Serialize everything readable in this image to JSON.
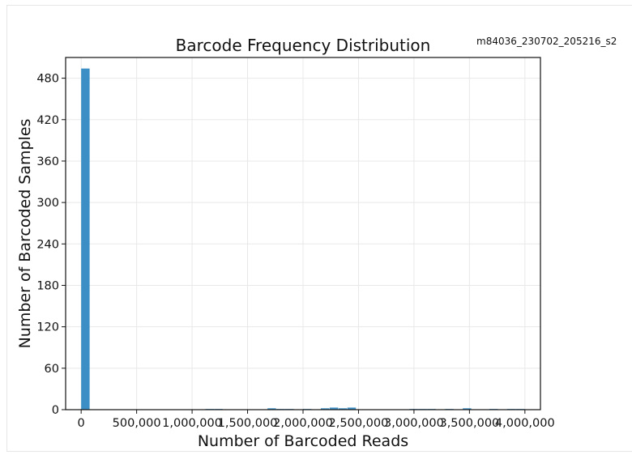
{
  "sample_id": "m84036_230702_205216_s2",
  "chart_data": {
    "type": "bar",
    "title": "Barcode Frequency Distribution",
    "xlabel": "Number of Barcoded Reads",
    "ylabel": "Number of Barcoded Samples",
    "xlim": [
      -140000,
      4140000
    ],
    "ylim": [
      0,
      510
    ],
    "x_ticks": [
      0,
      500000,
      1000000,
      1500000,
      2000000,
      2500000,
      3000000,
      3500000,
      4000000
    ],
    "x_tick_labels": [
      "0",
      "500,000",
      "1,000,000",
      "1,500,000",
      "2,000,000",
      "2,500,000",
      "3,000,000",
      "3,500,000",
      "4,000,000"
    ],
    "y_ticks": [
      0,
      60,
      120,
      180,
      240,
      300,
      360,
      420,
      480
    ],
    "y_tick_labels": [
      "0",
      "60",
      "120",
      "180",
      "240",
      "300",
      "360",
      "420",
      "480"
    ],
    "bin_width": 80000,
    "bins": [
      {
        "x0": 0,
        "count": 494
      },
      {
        "x0": 1120000,
        "count": 1
      },
      {
        "x0": 1200000,
        "count": 1
      },
      {
        "x0": 1680000,
        "count": 2
      },
      {
        "x0": 1760000,
        "count": 1
      },
      {
        "x0": 1840000,
        "count": 1
      },
      {
        "x0": 2000000,
        "count": 1
      },
      {
        "x0": 2160000,
        "count": 2
      },
      {
        "x0": 2240000,
        "count": 3
      },
      {
        "x0": 2320000,
        "count": 2
      },
      {
        "x0": 2400000,
        "count": 3
      },
      {
        "x0": 2960000,
        "count": 1
      },
      {
        "x0": 3040000,
        "count": 1
      },
      {
        "x0": 3120000,
        "count": 1
      },
      {
        "x0": 3280000,
        "count": 1
      },
      {
        "x0": 3440000,
        "count": 2
      },
      {
        "x0": 3680000,
        "count": 1
      },
      {
        "x0": 3840000,
        "count": 1
      },
      {
        "x0": 3920000,
        "count": 1
      }
    ],
    "bar_color": "#3b8fc4",
    "grid": true,
    "grid_color": "#e8e8e8"
  }
}
